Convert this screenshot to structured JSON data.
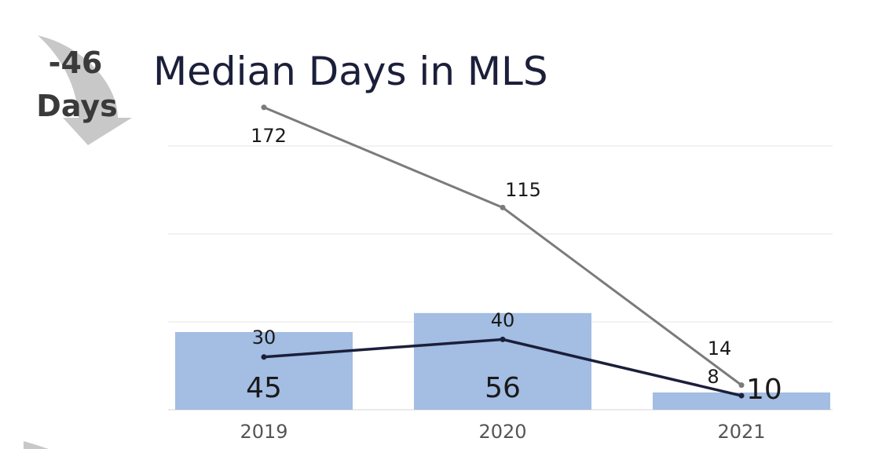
{
  "badge": {
    "value": "-46",
    "unit": "Days",
    "icon": "curved-down-arrow-icon"
  },
  "colors": {
    "bar": "#a3bde3",
    "line_gray": "#7b7b7b",
    "line_navy": "#1b1f3a",
    "grid": "#e6e6e6",
    "arrow": "#c8c8c8"
  },
  "chart_data": {
    "type": "bar",
    "title": "Median Days in MLS",
    "xlabel": "",
    "ylabel": "",
    "categories": [
      "2019",
      "2020",
      "2021"
    ],
    "grid": true,
    "legend": "none",
    "bar_series": {
      "values": [
        45,
        56,
        10
      ],
      "labels": [
        "45",
        "56",
        "10"
      ]
    },
    "line_series": [
      {
        "values": [
          172,
          115,
          14
        ],
        "labels": [
          "172",
          "115",
          "14"
        ],
        "color": "#7b7b7b"
      },
      {
        "values": [
          30,
          40,
          8
        ],
        "labels": [
          "30",
          "40",
          "8"
        ],
        "color": "#1b1f3a"
      }
    ]
  }
}
